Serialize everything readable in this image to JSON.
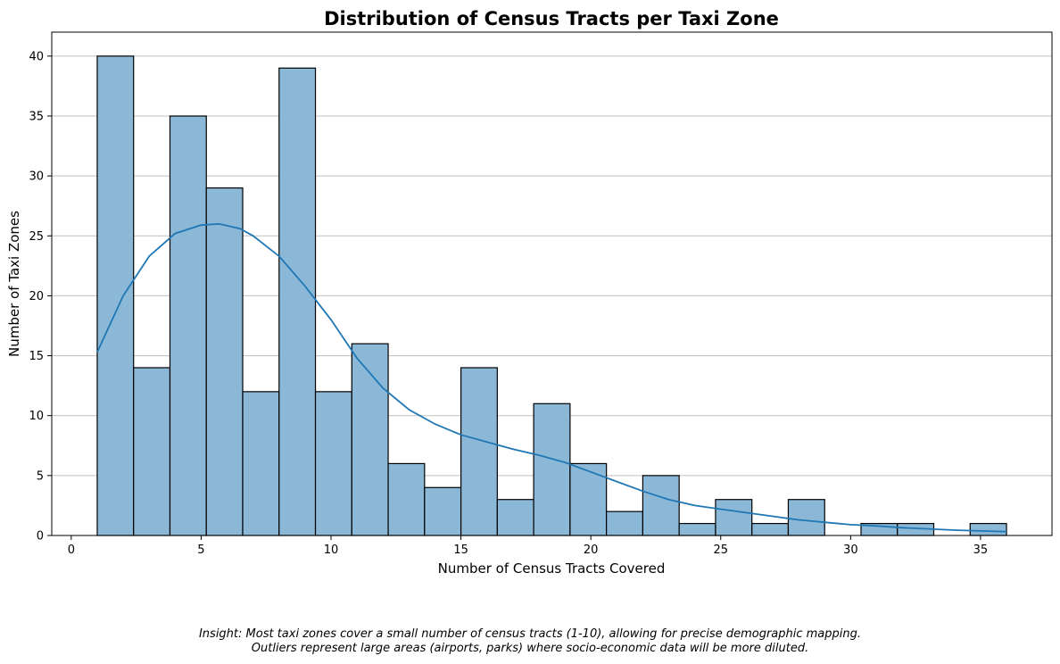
{
  "chart_data": {
    "type": "bar",
    "subtype": "histogram-with-kde",
    "title": "Distribution of Census Tracts per Taxi Zone",
    "xlabel": "Number of Census Tracts Covered",
    "ylabel": "Number of Taxi Zones",
    "xlim": [
      -0.75,
      37.75
    ],
    "ylim": [
      0,
      42
    ],
    "xticks": [
      0,
      5,
      10,
      15,
      20,
      25,
      30,
      35
    ],
    "yticks": [
      0,
      5,
      10,
      15,
      20,
      25,
      30,
      35,
      40
    ],
    "grid": "y-only",
    "bin_start": 1,
    "bin_end": 36,
    "counts": [
      40,
      14,
      35,
      29,
      12,
      39,
      12,
      16,
      6,
      4,
      14,
      3,
      11,
      6,
      2,
      5,
      1,
      3,
      1,
      3,
      0,
      1,
      1,
      0,
      1
    ],
    "kde": {
      "x": [
        1,
        2,
        3,
        4,
        5,
        5.7,
        6.5,
        7,
        8,
        9,
        10,
        11,
        12,
        13,
        14,
        15,
        16,
        17,
        18,
        19,
        20,
        21,
        22,
        23,
        24,
        25,
        26,
        27,
        28,
        29,
        30,
        31,
        32,
        33,
        34,
        35,
        36
      ],
      "y": [
        15.3,
        20.0,
        23.3,
        25.2,
        25.9,
        26.0,
        25.6,
        25.0,
        23.3,
        20.8,
        18.0,
        14.8,
        12.3,
        10.5,
        9.3,
        8.4,
        7.8,
        7.2,
        6.7,
        6.1,
        5.3,
        4.5,
        3.7,
        3.0,
        2.5,
        2.2,
        1.9,
        1.6,
        1.3,
        1.1,
        0.9,
        0.8,
        0.65,
        0.55,
        0.45,
        0.38,
        0.32
      ]
    },
    "colors": {
      "bar_fill": "#8cb8d8",
      "bar_edge": "#000000",
      "kde_line": "#1f77b4",
      "grid": "#c0c0c0"
    }
  },
  "footnote": {
    "line1": "Insight: Most taxi zones cover a small number of census tracts (1-10), allowing for precise demographic mapping.",
    "line2": "Outliers represent large areas (airports, parks) where socio-economic data will be more diluted."
  }
}
